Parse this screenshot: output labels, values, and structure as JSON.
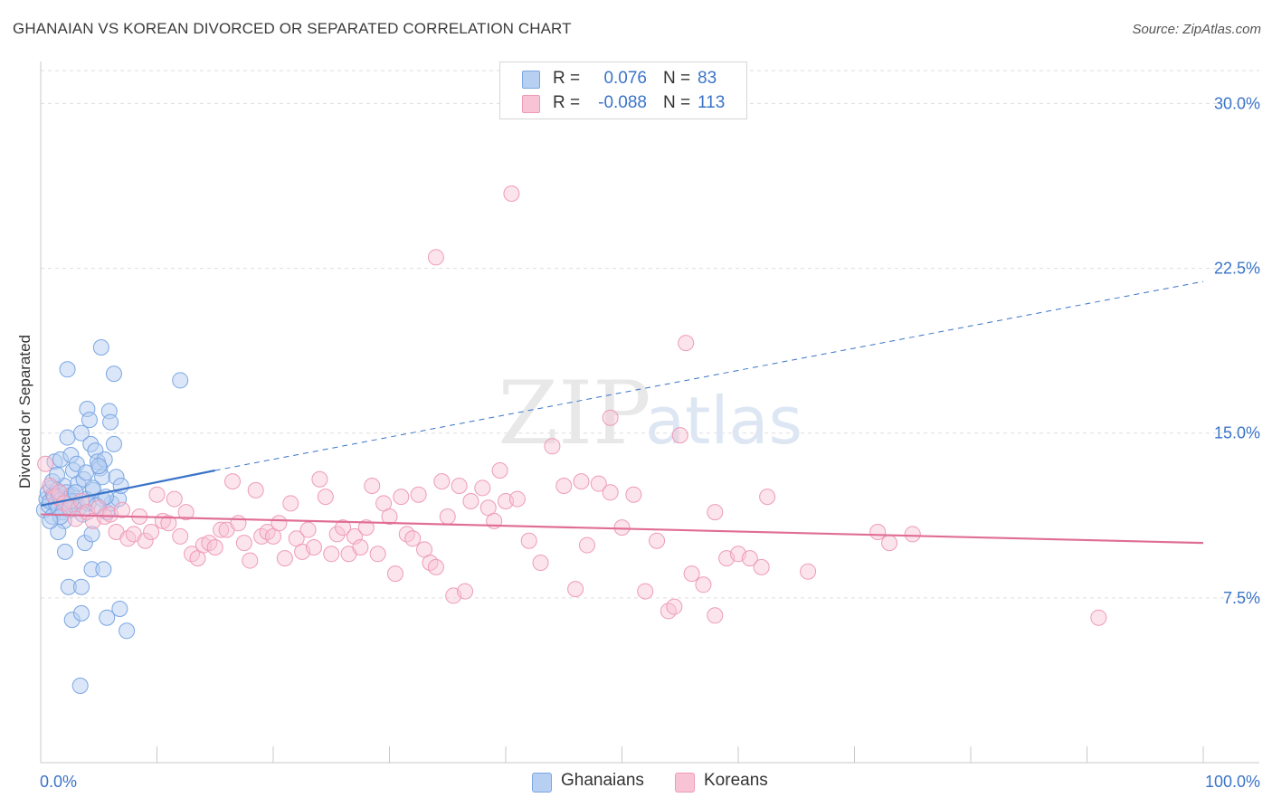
{
  "title": "GHANAIAN VS KOREAN DIVORCED OR SEPARATED CORRELATION CHART",
  "source": "Source: ZipAtlas.com",
  "watermark": {
    "zip": "ZIP",
    "atlas": "atlas"
  },
  "legend": {
    "rows": [
      {
        "series": "Ghanaians",
        "r_label": "R =",
        "r_value": "0.076",
        "n_label": "N =",
        "n_value": "83"
      },
      {
        "series": "Koreans",
        "r_label": "R =",
        "r_value": "-0.088",
        "n_label": "N =",
        "n_value": "113"
      }
    ]
  },
  "colors": {
    "blue_fill": "#b7d0f2",
    "blue_stroke": "#7aa6e3",
    "blue_line": "#3b74c8",
    "pink_fill": "#f8c3d4",
    "pink_stroke": "#ee9bb8",
    "pink_line": "#e06d96",
    "axis_text": "#3b74c8",
    "grid": "#dddddd"
  },
  "chart_data": {
    "type": "scatter",
    "title": "GHANAIAN VS KOREAN DIVORCED OR SEPARATED CORRELATION CHART",
    "xlabel": "",
    "ylabel": "Divorced or Separated",
    "xlim": [
      0,
      100
    ],
    "ylim": [
      0,
      31.5
    ],
    "x_tick_labels": [
      "0.0%",
      "100.0%"
    ],
    "y_ticks": [
      7.5,
      15.0,
      22.5,
      30.0
    ],
    "y_tick_labels": [
      "7.5%",
      "15.0%",
      "22.5%",
      "30.0%"
    ],
    "series": [
      {
        "name": "Ghanaians",
        "r": 0.076,
        "n": 83,
        "trend": {
          "x0": 0,
          "y0": 11.7,
          "x1": 15,
          "y1": 13.3,
          "dashed_to_x": 100,
          "dashed_to_y": 21.9
        },
        "points": [
          [
            0.3,
            11.5
          ],
          [
            0.5,
            12.0
          ],
          [
            0.6,
            12.3
          ],
          [
            0.7,
            11.7
          ],
          [
            0.8,
            11.9
          ],
          [
            0.9,
            12.5
          ],
          [
            1.0,
            11.2
          ],
          [
            1.1,
            12.2
          ],
          [
            1.2,
            13.7
          ],
          [
            1.3,
            11.8
          ],
          [
            1.4,
            12.4
          ],
          [
            1.5,
            11.6
          ],
          [
            1.6,
            12.1
          ],
          [
            1.7,
            13.8
          ],
          [
            1.8,
            12.0
          ],
          [
            1.9,
            11.4
          ],
          [
            2.0,
            12.6
          ],
          [
            2.1,
            11.9
          ],
          [
            2.2,
            12.3
          ],
          [
            2.3,
            14.8
          ],
          [
            2.4,
            12.0
          ],
          [
            2.5,
            11.5
          ],
          [
            2.6,
            14.0
          ],
          [
            2.7,
            12.2
          ],
          [
            2.8,
            13.3
          ],
          [
            2.9,
            11.7
          ],
          [
            3.0,
            11.9
          ],
          [
            3.1,
            13.6
          ],
          [
            3.2,
            12.7
          ],
          [
            3.3,
            11.6
          ],
          [
            3.5,
            15.0
          ],
          [
            3.7,
            12.9
          ],
          [
            3.9,
            13.2
          ],
          [
            4.1,
            11.8
          ],
          [
            4.3,
            14.5
          ],
          [
            4.5,
            12.4
          ],
          [
            4.7,
            14.2
          ],
          [
            4.9,
            13.7
          ],
          [
            5.1,
            13.4
          ],
          [
            5.3,
            13.0
          ],
          [
            5.5,
            13.8
          ],
          [
            5.7,
            11.4
          ],
          [
            5.9,
            16.0
          ],
          [
            6.1,
            11.8
          ],
          [
            6.3,
            14.5
          ],
          [
            6.5,
            13.0
          ],
          [
            6.7,
            12.0
          ],
          [
            6.9,
            12.6
          ],
          [
            2.3,
            17.9
          ],
          [
            5.2,
            18.9
          ],
          [
            6.3,
            17.7
          ],
          [
            12.0,
            17.4
          ],
          [
            2.0,
            11.0
          ],
          [
            4.0,
            16.1
          ],
          [
            3.9,
            12.0
          ],
          [
            4.2,
            15.6
          ],
          [
            6.0,
            15.5
          ],
          [
            1.5,
            10.5
          ],
          [
            3.6,
            11.3
          ],
          [
            4.5,
            12.5
          ],
          [
            5.0,
            13.5
          ],
          [
            2.1,
            9.6
          ],
          [
            3.8,
            10.0
          ],
          [
            4.4,
            10.4
          ],
          [
            2.4,
            8.0
          ],
          [
            3.5,
            8.0
          ],
          [
            4.4,
            8.8
          ],
          [
            5.4,
            8.8
          ],
          [
            2.7,
            6.5
          ],
          [
            3.5,
            6.8
          ],
          [
            5.7,
            6.6
          ],
          [
            6.8,
            7.0
          ],
          [
            7.4,
            6.0
          ],
          [
            3.4,
            3.5
          ],
          [
            5.3,
            12.0
          ],
          [
            1.7,
            11.2
          ],
          [
            2.6,
            11.9
          ],
          [
            1.0,
            12.8
          ],
          [
            3.0,
            12.3
          ],
          [
            4.8,
            11.7
          ],
          [
            5.6,
            12.1
          ],
          [
            0.8,
            11.0
          ],
          [
            1.4,
            13.1
          ]
        ]
      },
      {
        "name": "Koreans",
        "r": -0.088,
        "n": 113,
        "trend": {
          "x0": 0,
          "y0": 11.3,
          "x1": 100,
          "y1": 10.0
        },
        "points": [
          [
            0.4,
            13.6
          ],
          [
            0.8,
            12.6
          ],
          [
            1.2,
            12.1
          ],
          [
            1.6,
            12.3
          ],
          [
            2.0,
            11.8
          ],
          [
            2.5,
            11.6
          ],
          [
            3.0,
            11.1
          ],
          [
            3.5,
            11.9
          ],
          [
            4.0,
            11.4
          ],
          [
            4.5,
            11.0
          ],
          [
            5.0,
            11.6
          ],
          [
            5.5,
            11.2
          ],
          [
            6.0,
            11.3
          ],
          [
            6.5,
            10.5
          ],
          [
            7.0,
            11.5
          ],
          [
            7.5,
            10.2
          ],
          [
            8.0,
            10.4
          ],
          [
            8.5,
            11.2
          ],
          [
            9.0,
            10.1
          ],
          [
            9.5,
            10.5
          ],
          [
            10.0,
            12.2
          ],
          [
            10.5,
            11.0
          ],
          [
            11.0,
            10.9
          ],
          [
            11.5,
            12.0
          ],
          [
            12.0,
            10.3
          ],
          [
            12.5,
            11.4
          ],
          [
            13.0,
            9.5
          ],
          [
            13.5,
            9.3
          ],
          [
            14.0,
            9.9
          ],
          [
            14.5,
            10.0
          ],
          [
            15.0,
            9.8
          ],
          [
            15.5,
            10.6
          ],
          [
            16.0,
            10.6
          ],
          [
            16.5,
            12.8
          ],
          [
            17.0,
            10.9
          ],
          [
            17.5,
            10.0
          ],
          [
            18.0,
            9.2
          ],
          [
            18.5,
            12.4
          ],
          [
            19.0,
            10.3
          ],
          [
            19.5,
            10.5
          ],
          [
            20.0,
            10.3
          ],
          [
            20.5,
            10.9
          ],
          [
            21.0,
            9.3
          ],
          [
            21.5,
            11.8
          ],
          [
            22.0,
            10.2
          ],
          [
            22.5,
            9.6
          ],
          [
            23.0,
            10.6
          ],
          [
            23.5,
            9.8
          ],
          [
            24.0,
            12.9
          ],
          [
            24.5,
            12.1
          ],
          [
            25.0,
            9.5
          ],
          [
            25.5,
            10.4
          ],
          [
            26.0,
            10.7
          ],
          [
            26.5,
            9.5
          ],
          [
            27.0,
            10.3
          ],
          [
            27.5,
            9.8
          ],
          [
            28.0,
            10.7
          ],
          [
            28.5,
            12.6
          ],
          [
            29.0,
            9.5
          ],
          [
            29.5,
            11.8
          ],
          [
            30.0,
            11.2
          ],
          [
            30.5,
            8.6
          ],
          [
            31.0,
            12.1
          ],
          [
            31.5,
            10.4
          ],
          [
            32.0,
            10.2
          ],
          [
            32.5,
            12.2
          ],
          [
            33.0,
            9.7
          ],
          [
            33.5,
            9.1
          ],
          [
            34.0,
            8.9
          ],
          [
            34.5,
            12.8
          ],
          [
            35.0,
            11.2
          ],
          [
            35.5,
            7.6
          ],
          [
            36.0,
            12.6
          ],
          [
            36.5,
            7.8
          ],
          [
            37.0,
            11.9
          ],
          [
            38.0,
            12.5
          ],
          [
            38.5,
            11.6
          ],
          [
            39.0,
            11.0
          ],
          [
            39.5,
            13.3
          ],
          [
            40.0,
            11.9
          ],
          [
            41.0,
            12.0
          ],
          [
            42.0,
            10.1
          ],
          [
            43.0,
            9.1
          ],
          [
            44.0,
            14.4
          ],
          [
            45.0,
            12.6
          ],
          [
            46.0,
            7.9
          ],
          [
            46.5,
            12.8
          ],
          [
            47.0,
            9.9
          ],
          [
            48.0,
            12.7
          ],
          [
            49.0,
            12.3
          ],
          [
            50.0,
            10.7
          ],
          [
            51.0,
            12.2
          ],
          [
            52.0,
            7.8
          ],
          [
            53.0,
            10.1
          ],
          [
            54.0,
            6.9
          ],
          [
            54.5,
            7.1
          ],
          [
            55.0,
            14.9
          ],
          [
            56.0,
            8.6
          ],
          [
            57.0,
            8.1
          ],
          [
            58.0,
            11.4
          ],
          [
            59.0,
            9.3
          ],
          [
            60.0,
            9.5
          ],
          [
            61.0,
            9.3
          ],
          [
            62.0,
            8.9
          ],
          [
            62.5,
            12.1
          ],
          [
            66.0,
            8.7
          ],
          [
            72.0,
            10.5
          ],
          [
            73.0,
            10.0
          ],
          [
            75.0,
            10.4
          ],
          [
            91.0,
            6.6
          ],
          [
            40.5,
            25.9
          ],
          [
            34.0,
            23.0
          ],
          [
            55.5,
            19.1
          ],
          [
            49.0,
            15.7
          ],
          [
            58.0,
            6.7
          ]
        ]
      }
    ]
  },
  "bottom_legend": [
    {
      "label": "Ghanaians"
    },
    {
      "label": "Koreans"
    }
  ]
}
